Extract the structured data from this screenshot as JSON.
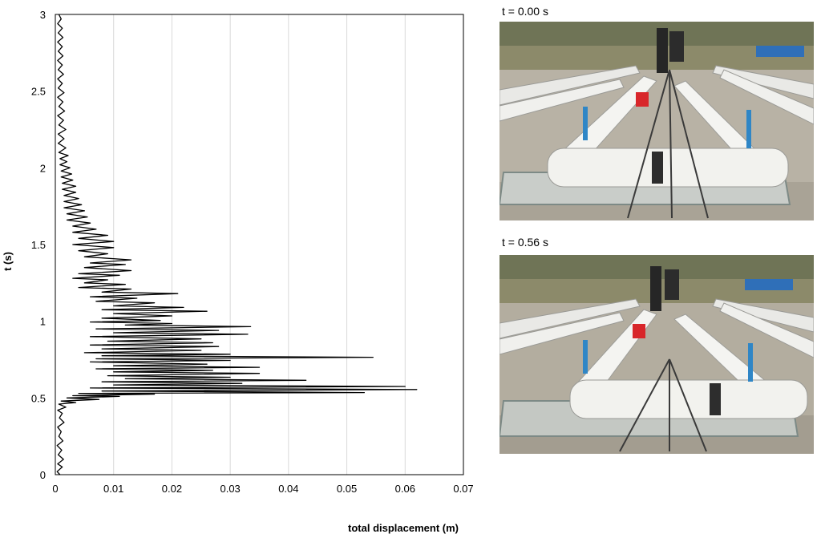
{
  "chart_data": {
    "type": "line",
    "xlabel": "total displacement (m)",
    "ylabel": "t (s)",
    "xlim": [
      0,
      0.07
    ],
    "ylim": [
      0,
      3
    ],
    "x_ticks": [
      "0",
      "0.01",
      "0.02",
      "0.03",
      "0.04",
      "0.05",
      "0.06",
      "0.07"
    ],
    "y_ticks": [
      "0",
      "0.5",
      "1",
      "1.5",
      "2",
      "2.5",
      "3"
    ],
    "grid": "vertical",
    "legend": "none",
    "series": [
      {
        "color": "#000000",
        "points": [
          [
            0.0008,
            0.0
          ],
          [
            0.0003,
            0.02
          ],
          [
            0.0012,
            0.05
          ],
          [
            0.0004,
            0.07
          ],
          [
            0.0014,
            0.1
          ],
          [
            0.0005,
            0.13
          ],
          [
            0.0011,
            0.16
          ],
          [
            0.0003,
            0.19
          ],
          [
            0.0013,
            0.22
          ],
          [
            0.0006,
            0.25
          ],
          [
            0.001,
            0.28
          ],
          [
            0.0004,
            0.31
          ],
          [
            0.0015,
            0.34
          ],
          [
            0.0007,
            0.37
          ],
          [
            0.0012,
            0.4
          ],
          [
            0.0004,
            0.42
          ],
          [
            0.0018,
            0.44
          ],
          [
            0.0006,
            0.46
          ],
          [
            0.0035,
            0.47
          ],
          [
            0.001,
            0.48
          ],
          [
            0.0075,
            0.49
          ],
          [
            0.002,
            0.5
          ],
          [
            0.011,
            0.51
          ],
          [
            0.003,
            0.515
          ],
          [
            0.017,
            0.525
          ],
          [
            0.004,
            0.53
          ],
          [
            0.053,
            0.535
          ],
          [
            0.008,
            0.545
          ],
          [
            0.062,
            0.555
          ],
          [
            0.006,
            0.565
          ],
          [
            0.06,
            0.575
          ],
          [
            0.01,
            0.585
          ],
          [
            0.032,
            0.595
          ],
          [
            0.008,
            0.605
          ],
          [
            0.043,
            0.615
          ],
          [
            0.012,
            0.625
          ],
          [
            0.03,
            0.635
          ],
          [
            0.009,
            0.645
          ],
          [
            0.035,
            0.66
          ],
          [
            0.01,
            0.67
          ],
          [
            0.027,
            0.68
          ],
          [
            0.007,
            0.69
          ],
          [
            0.035,
            0.7
          ],
          [
            0.01,
            0.71
          ],
          [
            0.026,
            0.72
          ],
          [
            0.006,
            0.735
          ],
          [
            0.03,
            0.745
          ],
          [
            0.007,
            0.755
          ],
          [
            0.0545,
            0.765
          ],
          [
            0.008,
            0.775
          ],
          [
            0.03,
            0.785
          ],
          [
            0.005,
            0.795
          ],
          [
            0.025,
            0.81
          ],
          [
            0.008,
            0.82
          ],
          [
            0.028,
            0.835
          ],
          [
            0.006,
            0.845
          ],
          [
            0.027,
            0.86
          ],
          [
            0.009,
            0.87
          ],
          [
            0.025,
            0.885
          ],
          [
            0.006,
            0.9
          ],
          [
            0.033,
            0.915
          ],
          [
            0.01,
            0.925
          ],
          [
            0.028,
            0.94
          ],
          [
            0.007,
            0.95
          ],
          [
            0.0335,
            0.965
          ],
          [
            0.012,
            0.975
          ],
          [
            0.02,
            0.985
          ],
          [
            0.006,
            0.995
          ],
          [
            0.018,
            1.005
          ],
          [
            0.008,
            1.02
          ],
          [
            0.02,
            1.035
          ],
          [
            0.01,
            1.05
          ],
          [
            0.026,
            1.065
          ],
          [
            0.008,
            1.075
          ],
          [
            0.022,
            1.09
          ],
          [
            0.01,
            1.1
          ],
          [
            0.017,
            1.12
          ],
          [
            0.007,
            1.13
          ],
          [
            0.014,
            1.15
          ],
          [
            0.006,
            1.16
          ],
          [
            0.021,
            1.18
          ],
          [
            0.008,
            1.19
          ],
          [
            0.013,
            1.21
          ],
          [
            0.004,
            1.22
          ],
          [
            0.012,
            1.24
          ],
          [
            0.005,
            1.25
          ],
          [
            0.009,
            1.27
          ],
          [
            0.003,
            1.28
          ],
          [
            0.011,
            1.3
          ],
          [
            0.004,
            1.31
          ],
          [
            0.013,
            1.33
          ],
          [
            0.005,
            1.35
          ],
          [
            0.012,
            1.37
          ],
          [
            0.006,
            1.38
          ],
          [
            0.013,
            1.4
          ],
          [
            0.005,
            1.42
          ],
          [
            0.009,
            1.44
          ],
          [
            0.004,
            1.46
          ],
          [
            0.01,
            1.48
          ],
          [
            0.003,
            1.5
          ],
          [
            0.01,
            1.52
          ],
          [
            0.004,
            1.54
          ],
          [
            0.009,
            1.56
          ],
          [
            0.003,
            1.58
          ],
          [
            0.007,
            1.6
          ],
          [
            0.003,
            1.62
          ],
          [
            0.006,
            1.64
          ],
          [
            0.002,
            1.66
          ],
          [
            0.0055,
            1.68
          ],
          [
            0.002,
            1.7
          ],
          [
            0.005,
            1.72
          ],
          [
            0.0015,
            1.74
          ],
          [
            0.0045,
            1.76
          ],
          [
            0.0015,
            1.78
          ],
          [
            0.004,
            1.8
          ],
          [
            0.0015,
            1.82
          ],
          [
            0.0035,
            1.84
          ],
          [
            0.0012,
            1.86
          ],
          [
            0.0035,
            1.88
          ],
          [
            0.0012,
            1.9
          ],
          [
            0.003,
            1.92
          ],
          [
            0.001,
            1.94
          ],
          [
            0.0028,
            1.96
          ],
          [
            0.001,
            1.98
          ],
          [
            0.0025,
            2.0
          ],
          [
            0.0008,
            2.02
          ],
          [
            0.002,
            2.04
          ],
          [
            0.0008,
            2.06
          ],
          [
            0.0022,
            2.08
          ],
          [
            0.0006,
            2.1
          ],
          [
            0.0018,
            2.13
          ],
          [
            0.0005,
            2.16
          ],
          [
            0.0015,
            2.19
          ],
          [
            0.0005,
            2.22
          ],
          [
            0.0018,
            2.25
          ],
          [
            0.0006,
            2.28
          ],
          [
            0.0014,
            2.31
          ],
          [
            0.0004,
            2.34
          ],
          [
            0.0016,
            2.37
          ],
          [
            0.0006,
            2.4
          ],
          [
            0.0013,
            2.43
          ],
          [
            0.0004,
            2.46
          ],
          [
            0.0015,
            2.49
          ],
          [
            0.0005,
            2.52
          ],
          [
            0.0012,
            2.55
          ],
          [
            0.0004,
            2.58
          ],
          [
            0.0014,
            2.61
          ],
          [
            0.0005,
            2.64
          ],
          [
            0.0012,
            2.67
          ],
          [
            0.0004,
            2.7
          ],
          [
            0.0013,
            2.73
          ],
          [
            0.0005,
            2.76
          ],
          [
            0.0012,
            2.79
          ],
          [
            0.0004,
            2.82
          ],
          [
            0.0013,
            2.85
          ],
          [
            0.0005,
            2.88
          ],
          [
            0.0012,
            2.91
          ],
          [
            0.0004,
            2.94
          ],
          [
            0.001,
            2.97
          ],
          [
            0.0006,
            3.0
          ]
        ]
      }
    ]
  },
  "photos": {
    "top_caption": "t = 0.00 s",
    "bottom_caption": "t = 0.56 s"
  }
}
